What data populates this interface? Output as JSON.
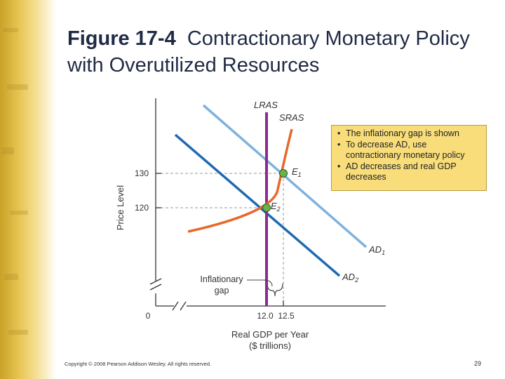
{
  "title": {
    "figure": "Figure 17-4",
    "text": "Contractionary Monetary Policy with Overutilized Resources"
  },
  "chart_data": {
    "type": "line",
    "xlabel": "Real GDP per Year",
    "xlabel_units": "($ trillions)",
    "ylabel": "Price Level",
    "origin_label": "0",
    "x_ticks": [
      "12.0",
      "12.5"
    ],
    "y_ticks": [
      "130",
      "120"
    ],
    "curve_labels": {
      "lras": "LRAS",
      "sras": "SRAS",
      "ad1": "AD",
      "ad1_sub": "1",
      "ad2": "AD",
      "ad2_sub": "2"
    },
    "points": [
      {
        "label": "E",
        "sub": "1",
        "x": 12.5,
        "y": 130
      },
      {
        "label": "E",
        "sub": "2",
        "x": 12.0,
        "y": 120
      }
    ],
    "gap_annotation": [
      "Inflationary",
      "gap"
    ],
    "colors": {
      "lras": "#8b2b8f",
      "sras": "#e8682b",
      "ad1": "#7fb2dd",
      "ad2": "#1f6ab0",
      "point": "#6cb24a"
    }
  },
  "callout": {
    "items": [
      "The inflationary gap is shown",
      "To decrease AD, use contractionary monetary policy",
      "AD decreases and real GDP decreases"
    ]
  },
  "footer": {
    "copyright": "Copyright © 2008 Pearson Addison Wesley. All rights reserved.",
    "page": "29"
  }
}
